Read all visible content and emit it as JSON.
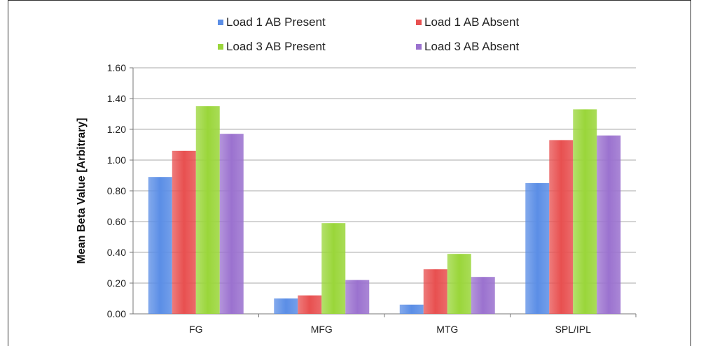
{
  "chart_data": {
    "type": "bar",
    "categories": [
      "FG",
      "MFG",
      "MTG",
      "SPL/IPL"
    ],
    "series": [
      {
        "name": "Load 1 AB Present",
        "color": "#5b8ee6",
        "values": [
          0.89,
          0.1,
          0.06,
          0.85
        ]
      },
      {
        "name": "Load 1 AB Absent",
        "color": "#e85050",
        "values": [
          1.06,
          0.12,
          0.29,
          1.13
        ]
      },
      {
        "name": "Load 3 AB Present",
        "color": "#9ad63a",
        "values": [
          1.35,
          0.59,
          0.39,
          1.33
        ]
      },
      {
        "name": "Load 3 AB Absent",
        "color": "#9b72cf",
        "values": [
          1.17,
          0.22,
          0.24,
          1.16
        ]
      }
    ],
    "ylabel": "Mean Beta Value [Arbitrary]",
    "xlabel": "",
    "ylim": [
      0,
      1.6
    ],
    "yticks": [
      "0.00",
      "0.20",
      "0.40",
      "0.60",
      "0.80",
      "1.00",
      "1.20",
      "1.40",
      "1.60"
    ],
    "grid": true,
    "legend_position": "top"
  }
}
